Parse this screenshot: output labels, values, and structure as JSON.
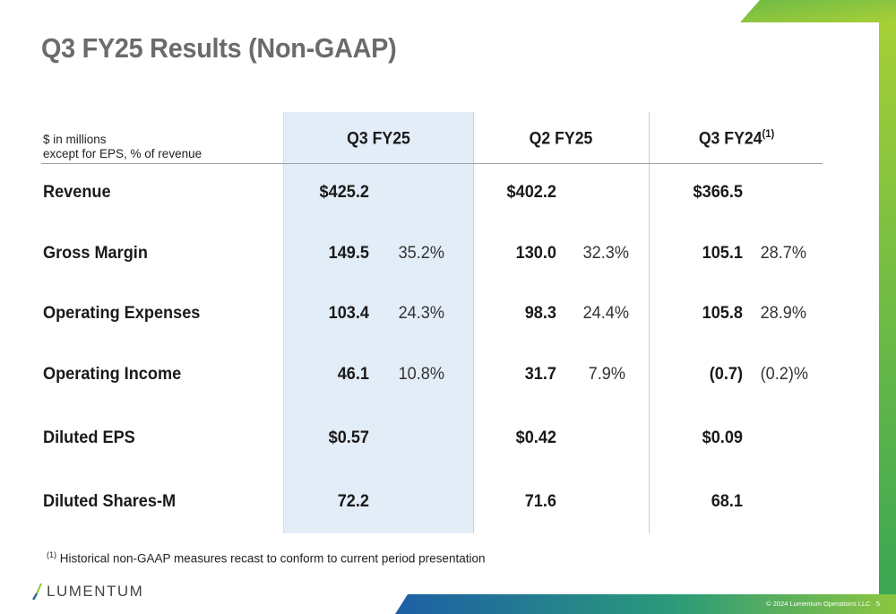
{
  "slide": {
    "title": "Q3 FY25 Results (Non-GAAP)",
    "unit_line1": "$ in millions",
    "unit_line2": "except for EPS, % of revenue",
    "footnote_marker": "(1)",
    "footnote_text": " Historical non-GAAP measures recast to conform to current period presentation",
    "logo_text": "LUMENTUM",
    "copyright": "© 2024 Lumentum Operations LLC",
    "page_number": "5"
  },
  "columns": [
    {
      "label": "Q3 FY25",
      "superscript": ""
    },
    {
      "label": "Q2 FY25",
      "superscript": ""
    },
    {
      "label": "Q3 FY24",
      "superscript": "(1)"
    }
  ],
  "rows": [
    {
      "label": "Revenue",
      "cells": [
        {
          "value": "$425.2",
          "pct": ""
        },
        {
          "value": "$402.2",
          "pct": ""
        },
        {
          "value": "$366.5",
          "pct": ""
        }
      ]
    },
    {
      "label": "Gross Margin",
      "cells": [
        {
          "value": "149.5",
          "pct": "35.2%"
        },
        {
          "value": "130.0",
          "pct": "32.3%"
        },
        {
          "value": "105.1",
          "pct": "28.7%"
        }
      ]
    },
    {
      "label": "Operating Expenses",
      "cells": [
        {
          "value": "103.4",
          "pct": "24.3%"
        },
        {
          "value": "98.3",
          "pct": "24.4%"
        },
        {
          "value": "105.8",
          "pct": "28.9%"
        }
      ]
    },
    {
      "label": "Operating Income",
      "cells": [
        {
          "value": "46.1",
          "pct": "10.8%"
        },
        {
          "value": "31.7",
          "pct": "7.9%"
        },
        {
          "value": "(0.7)",
          "pct": "(0.2)%"
        }
      ]
    },
    {
      "label": "Diluted EPS",
      "cells": [
        {
          "value": "$0.57",
          "pct": ""
        },
        {
          "value": "$0.42",
          "pct": ""
        },
        {
          "value": "$0.09",
          "pct": ""
        }
      ]
    },
    {
      "label": "Diluted Shares-M",
      "cells": [
        {
          "value": "72.2",
          "pct": ""
        },
        {
          "value": "71.6",
          "pct": ""
        },
        {
          "value": "68.1",
          "pct": ""
        }
      ]
    }
  ],
  "colors": {
    "accent_green": "#8cc63f",
    "accent_blue": "#1d5fa6",
    "highlight": "#e3edf8"
  }
}
